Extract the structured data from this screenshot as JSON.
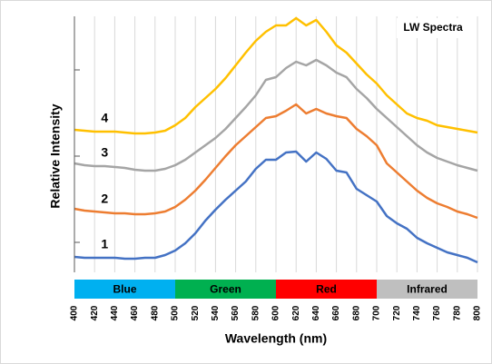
{
  "chart_data": {
    "type": "line",
    "title": "LW Spectra",
    "x_label": "Wavelength (nm)",
    "y_label": "Relative Intensity",
    "x": [
      400,
      410,
      420,
      430,
      440,
      450,
      460,
      470,
      480,
      490,
      500,
      510,
      520,
      530,
      540,
      550,
      560,
      570,
      580,
      590,
      600,
      610,
      620,
      630,
      640,
      650,
      660,
      670,
      680,
      690,
      700,
      710,
      720,
      730,
      740,
      750,
      760,
      770,
      780,
      790,
      800
    ],
    "series": [
      {
        "name": "1",
        "color": "#4472c4",
        "values": [
          17,
          16,
          16,
          16,
          16,
          15,
          15,
          16,
          16,
          19,
          24,
          32,
          43,
          57,
          69,
          80,
          90,
          100,
          114,
          124,
          124,
          132,
          133,
          122,
          132,
          125,
          112,
          110,
          92,
          85,
          78,
          62,
          54,
          48,
          38,
          32,
          27,
          22,
          19,
          16,
          11
        ]
      },
      {
        "name": "2",
        "color": "#ed7d31",
        "values": [
          70,
          68,
          67,
          66,
          65,
          65,
          64,
          64,
          65,
          67,
          72,
          80,
          90,
          102,
          115,
          128,
          140,
          150,
          160,
          170,
          172,
          178,
          185,
          175,
          180,
          175,
          172,
          170,
          158,
          150,
          140,
          120,
          110,
          100,
          90,
          82,
          76,
          72,
          67,
          64,
          60
        ]
      },
      {
        "name": "3",
        "color": "#a5a5a5",
        "values": [
          120,
          118,
          117,
          117,
          116,
          115,
          113,
          112,
          112,
          114,
          118,
          124,
          132,
          140,
          148,
          158,
          170,
          182,
          195,
          212,
          215,
          225,
          232,
          228,
          234,
          228,
          220,
          215,
          202,
          192,
          180,
          170,
          160,
          150,
          140,
          132,
          126,
          122,
          118,
          115,
          112
        ]
      },
      {
        "name": "4",
        "color": "#ffc000",
        "values": [
          157,
          156,
          155,
          155,
          155,
          154,
          153,
          153,
          154,
          156,
          162,
          170,
          182,
          192,
          202,
          214,
          228,
          242,
          255,
          265,
          272,
          272,
          280,
          272,
          278,
          265,
          250,
          242,
          230,
          218,
          208,
          195,
          185,
          175,
          170,
          167,
          162,
          160,
          158,
          156,
          154
        ]
      }
    ],
    "bands": [
      {
        "label": "Blue",
        "start": 400,
        "end": 500,
        "color": "#00b0f0"
      },
      {
        "label": "Green",
        "start": 500,
        "end": 600,
        "color": "#00b050"
      },
      {
        "label": "Red",
        "start": 600,
        "end": 700,
        "color": "#ff0000"
      },
      {
        "label": "Infrared",
        "start": 700,
        "end": 800,
        "color": "#bfbfbf"
      }
    ],
    "xlim": [
      400,
      800
    ],
    "xticks": [
      400,
      420,
      440,
      460,
      480,
      500,
      520,
      540,
      560,
      580,
      600,
      620,
      640,
      660,
      680,
      700,
      720,
      740,
      760,
      780,
      800
    ],
    "ylim": [
      0,
      282
    ],
    "yticks": [
      33,
      128,
      223
    ],
    "grid": true
  }
}
